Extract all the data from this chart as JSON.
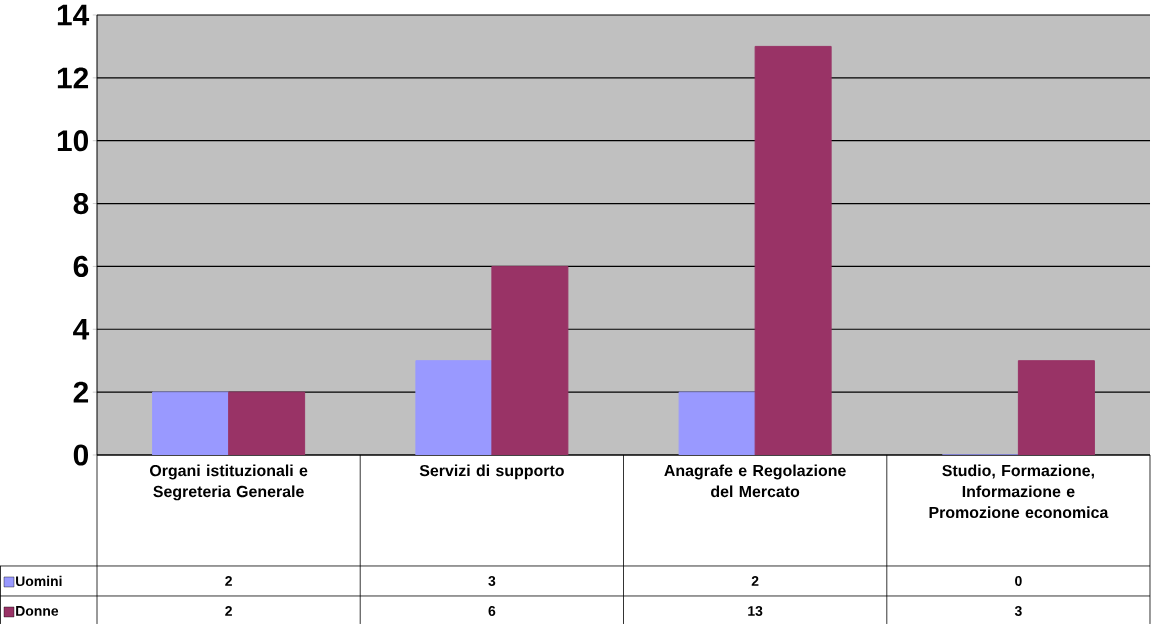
{
  "chart_data": {
    "type": "bar",
    "categories": [
      "Organi istituzionali e Segreteria Generale",
      "Servizi di supporto",
      "Anagrafe e Regolazione del Mercato",
      "Studio, Formazione, Informazione e Promozione economica"
    ],
    "series": [
      {
        "name": "Uomini",
        "color": "#9999ff",
        "values": [
          2,
          3,
          2,
          0
        ]
      },
      {
        "name": "Donne",
        "color": "#993366",
        "values": [
          2,
          6,
          13,
          3
        ]
      }
    ],
    "ylim": [
      0,
      14
    ],
    "yticks": [
      0,
      2,
      4,
      6,
      8,
      10,
      12,
      14
    ],
    "grid": "y",
    "legend": "bottom left",
    "data_labels": true
  }
}
